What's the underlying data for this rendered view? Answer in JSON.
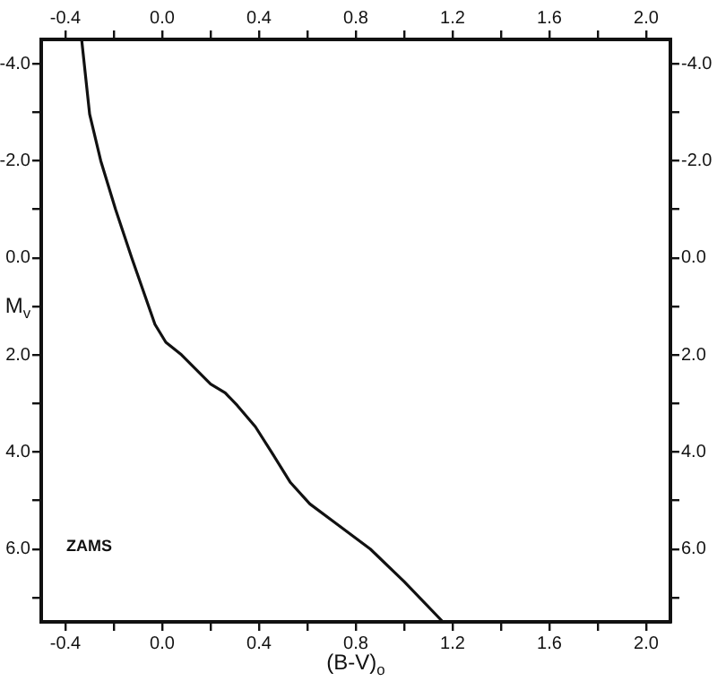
{
  "chart_data": {
    "type": "line",
    "xlabel": "(B-V)$_{o}$",
    "ylabel": "M$_{v}$",
    "x": [
      -0.333,
      -0.3,
      -0.254,
      -0.193,
      -0.126,
      -0.03,
      0.015,
      0.08,
      0.2,
      0.26,
      0.31,
      0.385,
      0.46,
      0.53,
      0.61,
      0.71,
      0.86,
      1.0,
      1.16
    ],
    "series": [
      {
        "color": "#111111",
        "values": [
          -4.5,
          -2.96,
          -2.0,
          -1.0,
          0.0,
          1.37,
          1.74,
          2.0,
          2.6,
          2.78,
          3.04,
          3.48,
          4.07,
          4.63,
          5.07,
          5.44,
          6.0,
          6.67,
          7.5
        ]
      }
    ],
    "xlim": [
      -0.5,
      2.1
    ],
    "ylim": [
      7.5,
      -4.5
    ],
    "xticks": [
      -0.4,
      {
        "value": -0.2,
        "label": null
      },
      {
        "value": 0.0,
        "label": "0.0"
      },
      {
        "value": 0.2,
        "label": null
      },
      0.4,
      {
        "value": 0.6,
        "label": null
      },
      0.8,
      {
        "value": 1.0,
        "label": null
      },
      1.2,
      {
        "value": 1.4,
        "label": null
      },
      1.6,
      {
        "value": 1.8,
        "label": null
      },
      {
        "value": 2.0,
        "label": "2.0"
      }
    ],
    "x2lim": [
      -0.5,
      2.1
    ],
    "x2ticks": [
      -0.4,
      {
        "value": -0.2,
        "label": null
      },
      {
        "value": 0.0,
        "label": "0.0"
      },
      {
        "value": 0.2,
        "label": null
      },
      0.4,
      {
        "value": 0.6,
        "label": null
      },
      0.8,
      {
        "value": 1.0,
        "label": null
      },
      1.2,
      {
        "value": 1.4,
        "label": null
      },
      1.6,
      {
        "value": 1.8,
        "label": null
      },
      {
        "value": 2.0,
        "label": "2.0"
      }
    ],
    "yticks": [
      {
        "value": -4.0,
        "label": "-4.0"
      },
      {
        "value": -3.0,
        "label": null
      },
      {
        "value": -2.0,
        "label": "-2.0"
      },
      {
        "value": -1.0,
        "label": null
      },
      {
        "value": 0.0,
        "label": "0.0"
      },
      {
        "value": 1.0,
        "label": null
      },
      {
        "value": 2.0,
        "label": "2.0"
      },
      {
        "value": 3.0,
        "label": null
      },
      {
        "value": 4.0,
        "label": "4.0"
      },
      {
        "value": 5.0,
        "label": null
      },
      {
        "value": 6.0,
        "label": "6.0"
      },
      {
        "value": 7.0,
        "label": null
      }
    ],
    "y2lim": [
      7.5,
      -4.5
    ],
    "y2ticks": [
      {
        "value": -4.0,
        "label": "-4.0"
      },
      {
        "value": -3.0,
        "label": null
      },
      {
        "value": -2.0,
        "label": "-2.0"
      },
      {
        "value": -1.0,
        "label": null
      },
      {
        "value": 0.0,
        "label": "0.0"
      },
      {
        "value": 1.0,
        "label": null
      },
      {
        "value": 2.0,
        "label": "2.0"
      },
      {
        "value": 3.0,
        "label": null
      },
      {
        "value": 4.0,
        "label": "4.0"
      },
      {
        "value": 5.0,
        "label": null
      },
      {
        "value": 6.0,
        "label": "6.0"
      },
      {
        "value": 7.0,
        "label": null
      }
    ],
    "annotations": [
      "ZAMS"
    ],
    "grid": false,
    "legend": false,
    "marker": "none",
    "line_style": "solid"
  }
}
